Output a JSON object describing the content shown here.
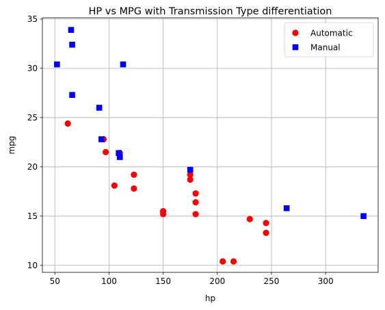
{
  "chart_data": {
    "type": "scatter",
    "title": "HP vs MPG with Transmission Type differentiation",
    "xlabel": "hp",
    "ylabel": "mpg",
    "xlim": [
      38.5,
      348.5
    ],
    "ylim": [
      9.29,
      35.13
    ],
    "xticks": [
      50,
      100,
      150,
      200,
      250,
      300
    ],
    "yticks": [
      10,
      15,
      20,
      25,
      30,
      35
    ],
    "grid": true,
    "legend_position": "top-right",
    "series": [
      {
        "name": "Automatic",
        "marker": "circle",
        "color": "#ff0000",
        "points": [
          [
            110,
            21.4
          ],
          [
            175,
            18.7
          ],
          [
            105,
            18.1
          ],
          [
            245,
            14.3
          ],
          [
            62,
            24.4
          ],
          [
            95,
            22.8
          ],
          [
            123,
            19.2
          ],
          [
            123,
            17.8
          ],
          [
            180,
            16.4
          ],
          [
            180,
            17.3
          ],
          [
            180,
            15.2
          ],
          [
            205,
            10.4
          ],
          [
            215,
            10.4
          ],
          [
            230,
            14.7
          ],
          [
            97,
            21.5
          ],
          [
            150,
            15.5
          ],
          [
            150,
            15.2
          ],
          [
            245,
            13.3
          ],
          [
            175,
            19.2
          ]
        ]
      },
      {
        "name": "Manual",
        "marker": "square",
        "color": "#0000ff",
        "points": [
          [
            110,
            21.0
          ],
          [
            110,
            21.0
          ],
          [
            93,
            22.8
          ],
          [
            66,
            32.4
          ],
          [
            52,
            30.4
          ],
          [
            65,
            33.9
          ],
          [
            66,
            27.3
          ],
          [
            91,
            26.0
          ],
          [
            113,
            30.4
          ],
          [
            264,
            15.8
          ],
          [
            175,
            19.7
          ],
          [
            335,
            15.0
          ],
          [
            109,
            21.4
          ]
        ]
      }
    ]
  }
}
